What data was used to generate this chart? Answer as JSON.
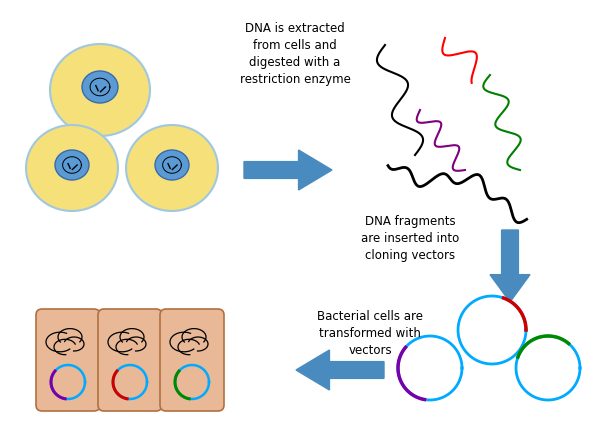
{
  "bg_color": "#ffffff",
  "arrow_color": "#4a8bbf",
  "cell_outer_color": "#f5e07a",
  "cell_outer_edge": "#a0c8e0",
  "cell_inner_color": "#5b9bd5",
  "cell_inner_edge": "#3a6aaa",
  "bacterial_box_color": "#e8b897",
  "bacterial_box_edge": "#b07040",
  "text1": "DNA is extracted\nfrom cells and\ndigested with a\nrestriction enzyme",
  "text2": "DNA fragments\nare inserted into\ncloning vectors",
  "text3": "Bacterial cells are\ntransformed with\nvectors",
  "plasmid_color": "#00aaff",
  "insert_colors_bacteria": [
    "#7700aa",
    "#cc0000",
    "#008800"
  ],
  "insert_colors_vectors": [
    "#7700aa",
    "#cc0000",
    "#008800"
  ]
}
